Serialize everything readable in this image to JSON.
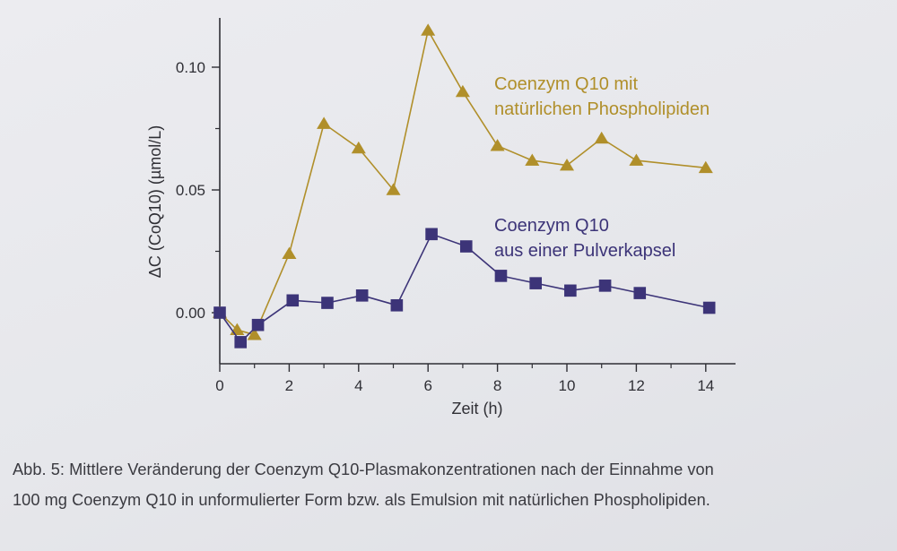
{
  "chart_data": {
    "type": "line",
    "xlabel": "Zeit (h)",
    "ylabel": "ΔC (CoQ10) (µmol/L)",
    "xlim": [
      0,
      15
    ],
    "ylim": [
      -0.021,
      0.121
    ],
    "x_ticks": [
      0,
      2,
      4,
      6,
      8,
      10,
      12,
      14
    ],
    "x_tick_labels": [
      "0",
      "2",
      "4",
      "6",
      "8",
      "10",
      "12",
      "14"
    ],
    "y_ticks": [
      0.0,
      0.05,
      0.1
    ],
    "y_tick_labels": [
      "0.00",
      "0.05",
      "0.10"
    ],
    "grid": false,
    "legend": "inline labels right of series",
    "series": [
      {
        "name": "Coenzym Q10 mit natürlichen Phospholipiden",
        "label_lines": [
          "Coenzym Q10 mit",
          "natürlichen Phospholipiden"
        ],
        "marker": "triangle",
        "color": "#b08f2a",
        "x": [
          0,
          0.5,
          1,
          2,
          3,
          4,
          5,
          6,
          7,
          8,
          9,
          10,
          11,
          12,
          14
        ],
        "y": [
          0.0,
          -0.007,
          -0.009,
          0.024,
          0.077,
          0.067,
          0.05,
          0.115,
          0.09,
          0.068,
          0.062,
          0.06,
          0.071,
          0.062,
          0.059
        ]
      },
      {
        "name": "Coenzym Q10 aus einer Pulverkapsel",
        "label_lines": [
          "Coenzym Q10",
          "aus einer Pulverkapsel"
        ],
        "marker": "square",
        "color": "#3c3478",
        "x": [
          0,
          0.6,
          1.1,
          2.1,
          3.1,
          4.1,
          5.1,
          6.1,
          7.1,
          8.1,
          9.1,
          10.1,
          11.1,
          12.1,
          14.1
        ],
        "y": [
          0.0,
          -0.012,
          -0.005,
          0.005,
          0.004,
          0.007,
          0.003,
          0.032,
          0.027,
          0.015,
          0.012,
          0.009,
          0.011,
          0.008,
          0.002
        ]
      }
    ]
  },
  "caption": {
    "line1": "Abb. 5: Mittlere Veränderung der Coenzym Q10-Plasmakonzentrationen nach der Einnahme von",
    "line2": "100 mg Coenzym Q10 in unformulierter Form bzw. als Emulsion mit natürlichen Phospholipiden."
  }
}
